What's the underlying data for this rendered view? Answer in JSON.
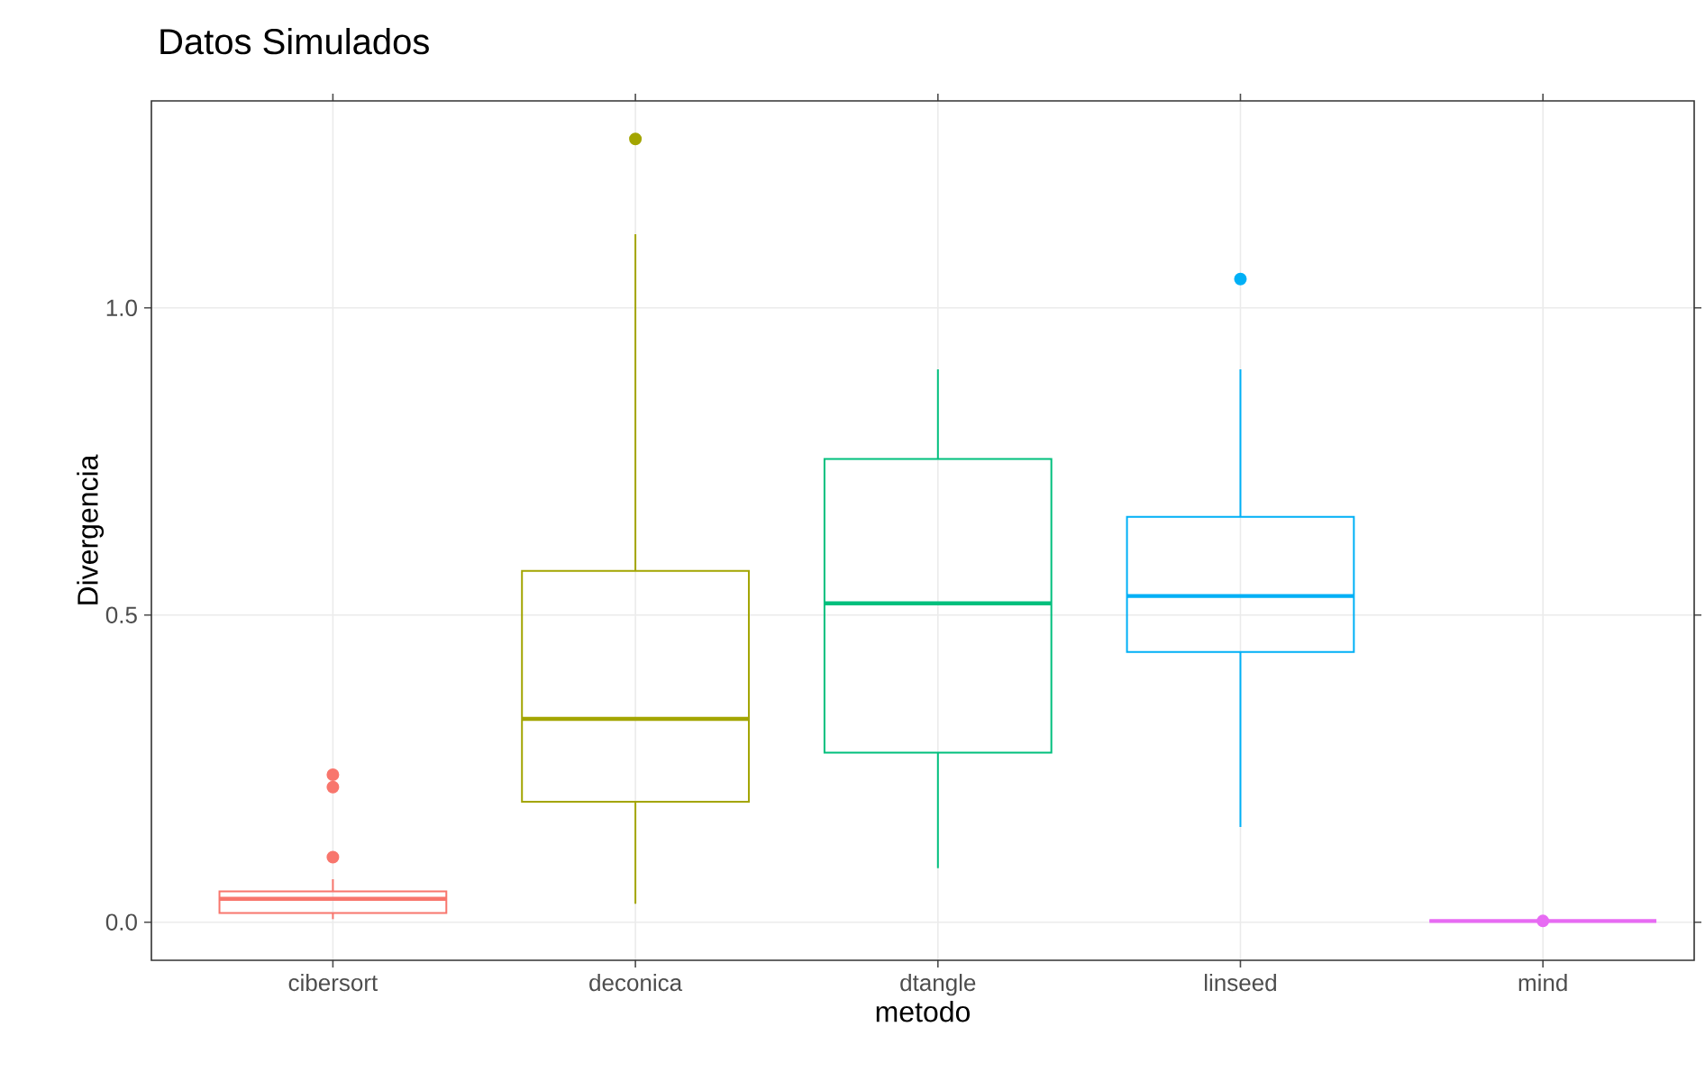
{
  "chart_data": {
    "type": "box",
    "title": "Datos Simulados",
    "xlabel": "metodo",
    "ylabel": "Divergencia",
    "categories": [
      "cibersort",
      "deconica",
      "dtangle",
      "linseed",
      "mind"
    ],
    "colors": [
      "#f8766d",
      "#a3a500",
      "#00bf7d",
      "#00b0f6",
      "#e76bf3"
    ],
    "boxes": [
      {
        "low": 0.005,
        "q1": 0.015,
        "median": 0.038,
        "q3": 0.05,
        "high": 0.07,
        "outliers": [
          0.106,
          0.22,
          0.24
        ]
      },
      {
        "low": 0.03,
        "q1": 0.196,
        "median": 0.331,
        "q3": 0.572,
        "high": 1.12,
        "outliers": [
          1.275
        ]
      },
      {
        "low": 0.088,
        "q1": 0.276,
        "median": 0.519,
        "q3": 0.754,
        "high": 0.9
      },
      {
        "low": 0.155,
        "q1": 0.44,
        "median": 0.531,
        "q3": 0.66,
        "high": 0.9,
        "outliers": [
          1.047
        ]
      },
      {
        "low": 0.002,
        "q1": 0.002,
        "median": 0.002,
        "q3": 0.002,
        "high": 0.002,
        "outliers": [
          0.002
        ]
      }
    ],
    "ylim": [
      -0.062,
      1.337
    ],
    "yticks": [
      {
        "value": 0,
        "label": "0.0"
      },
      {
        "value": 0.5,
        "label": "0.5"
      },
      {
        "value": 1,
        "label": "1.0"
      }
    ],
    "grid": true
  }
}
